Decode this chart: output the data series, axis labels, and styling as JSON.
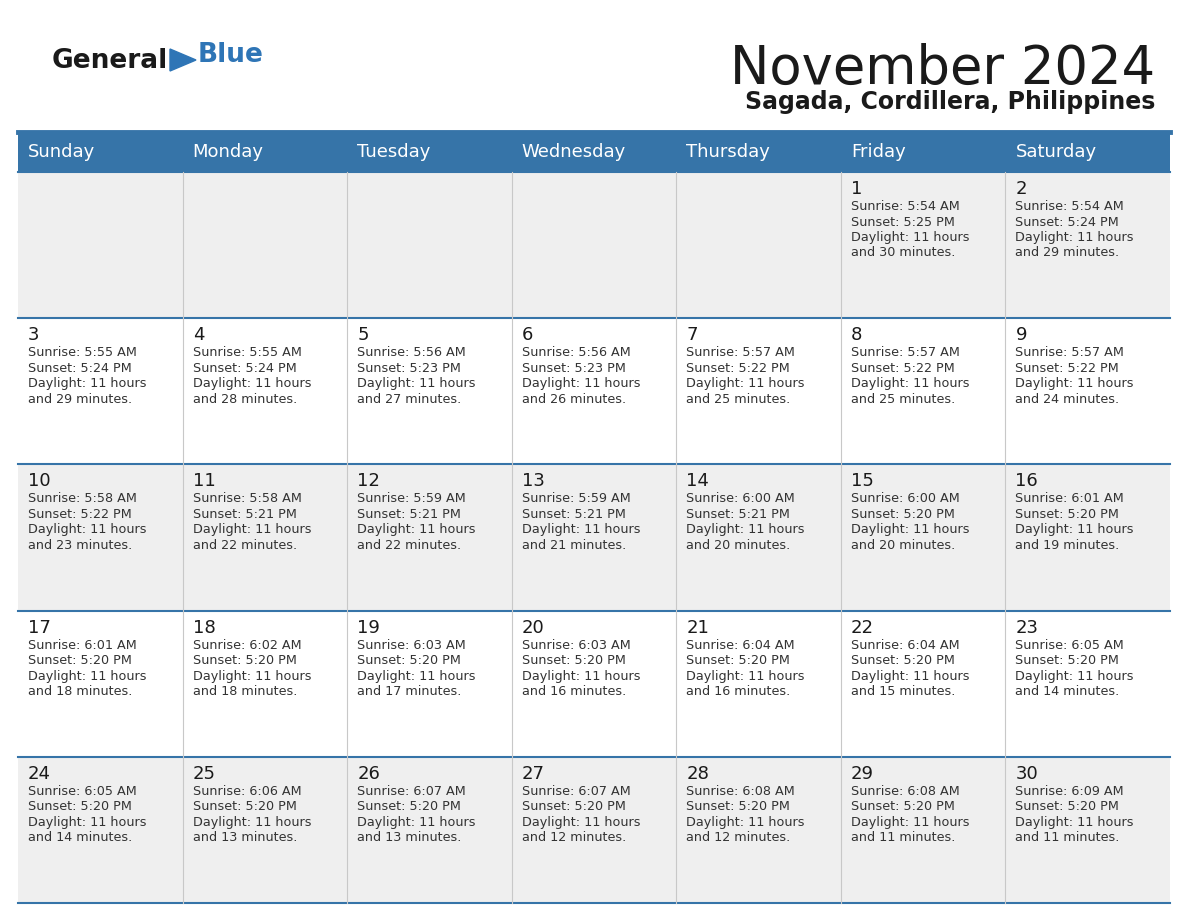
{
  "title": "November 2024",
  "subtitle": "Sagada, Cordillera, Philippines",
  "days_of_week": [
    "Sunday",
    "Monday",
    "Tuesday",
    "Wednesday",
    "Thursday",
    "Friday",
    "Saturday"
  ],
  "header_bg": "#3674A8",
  "header_text": "#FFFFFF",
  "cell_bg_odd": "#EFEFEF",
  "cell_bg_even": "#FFFFFF",
  "cell_text": "#333333",
  "line_color": "#3674A8",
  "logo_blue": "#2E75B6",
  "calendar_data": [
    [
      null,
      null,
      null,
      null,
      null,
      {
        "day": 1,
        "sunrise": "5:54 AM",
        "sunset": "5:25 PM",
        "daylight": "11 hours",
        "daylight2": "and 30 minutes."
      },
      {
        "day": 2,
        "sunrise": "5:54 AM",
        "sunset": "5:24 PM",
        "daylight": "11 hours",
        "daylight2": "and 29 minutes."
      }
    ],
    [
      {
        "day": 3,
        "sunrise": "5:55 AM",
        "sunset": "5:24 PM",
        "daylight": "11 hours",
        "daylight2": "and 29 minutes."
      },
      {
        "day": 4,
        "sunrise": "5:55 AM",
        "sunset": "5:24 PM",
        "daylight": "11 hours",
        "daylight2": "and 28 minutes."
      },
      {
        "day": 5,
        "sunrise": "5:56 AM",
        "sunset": "5:23 PM",
        "daylight": "11 hours",
        "daylight2": "and 27 minutes."
      },
      {
        "day": 6,
        "sunrise": "5:56 AM",
        "sunset": "5:23 PM",
        "daylight": "11 hours",
        "daylight2": "and 26 minutes."
      },
      {
        "day": 7,
        "sunrise": "5:57 AM",
        "sunset": "5:22 PM",
        "daylight": "11 hours",
        "daylight2": "and 25 minutes."
      },
      {
        "day": 8,
        "sunrise": "5:57 AM",
        "sunset": "5:22 PM",
        "daylight": "11 hours",
        "daylight2": "and 25 minutes."
      },
      {
        "day": 9,
        "sunrise": "5:57 AM",
        "sunset": "5:22 PM",
        "daylight": "11 hours",
        "daylight2": "and 24 minutes."
      }
    ],
    [
      {
        "day": 10,
        "sunrise": "5:58 AM",
        "sunset": "5:22 PM",
        "daylight": "11 hours",
        "daylight2": "and 23 minutes."
      },
      {
        "day": 11,
        "sunrise": "5:58 AM",
        "sunset": "5:21 PM",
        "daylight": "11 hours",
        "daylight2": "and 22 minutes."
      },
      {
        "day": 12,
        "sunrise": "5:59 AM",
        "sunset": "5:21 PM",
        "daylight": "11 hours",
        "daylight2": "and 22 minutes."
      },
      {
        "day": 13,
        "sunrise": "5:59 AM",
        "sunset": "5:21 PM",
        "daylight": "11 hours",
        "daylight2": "and 21 minutes."
      },
      {
        "day": 14,
        "sunrise": "6:00 AM",
        "sunset": "5:21 PM",
        "daylight": "11 hours",
        "daylight2": "and 20 minutes."
      },
      {
        "day": 15,
        "sunrise": "6:00 AM",
        "sunset": "5:20 PM",
        "daylight": "11 hours",
        "daylight2": "and 20 minutes."
      },
      {
        "day": 16,
        "sunrise": "6:01 AM",
        "sunset": "5:20 PM",
        "daylight": "11 hours",
        "daylight2": "and 19 minutes."
      }
    ],
    [
      {
        "day": 17,
        "sunrise": "6:01 AM",
        "sunset": "5:20 PM",
        "daylight": "11 hours",
        "daylight2": "and 18 minutes."
      },
      {
        "day": 18,
        "sunrise": "6:02 AM",
        "sunset": "5:20 PM",
        "daylight": "11 hours",
        "daylight2": "and 18 minutes."
      },
      {
        "day": 19,
        "sunrise": "6:03 AM",
        "sunset": "5:20 PM",
        "daylight": "11 hours",
        "daylight2": "and 17 minutes."
      },
      {
        "day": 20,
        "sunrise": "6:03 AM",
        "sunset": "5:20 PM",
        "daylight": "11 hours",
        "daylight2": "and 16 minutes."
      },
      {
        "day": 21,
        "sunrise": "6:04 AM",
        "sunset": "5:20 PM",
        "daylight": "11 hours",
        "daylight2": "and 16 minutes."
      },
      {
        "day": 22,
        "sunrise": "6:04 AM",
        "sunset": "5:20 PM",
        "daylight": "11 hours",
        "daylight2": "and 15 minutes."
      },
      {
        "day": 23,
        "sunrise": "6:05 AM",
        "sunset": "5:20 PM",
        "daylight": "11 hours",
        "daylight2": "and 14 minutes."
      }
    ],
    [
      {
        "day": 24,
        "sunrise": "6:05 AM",
        "sunset": "5:20 PM",
        "daylight": "11 hours",
        "daylight2": "and 14 minutes."
      },
      {
        "day": 25,
        "sunrise": "6:06 AM",
        "sunset": "5:20 PM",
        "daylight": "11 hours",
        "daylight2": "and 13 minutes."
      },
      {
        "day": 26,
        "sunrise": "6:07 AM",
        "sunset": "5:20 PM",
        "daylight": "11 hours",
        "daylight2": "and 13 minutes."
      },
      {
        "day": 27,
        "sunrise": "6:07 AM",
        "sunset": "5:20 PM",
        "daylight": "11 hours",
        "daylight2": "and 12 minutes."
      },
      {
        "day": 28,
        "sunrise": "6:08 AM",
        "sunset": "5:20 PM",
        "daylight": "11 hours",
        "daylight2": "and 12 minutes."
      },
      {
        "day": 29,
        "sunrise": "6:08 AM",
        "sunset": "5:20 PM",
        "daylight": "11 hours",
        "daylight2": "and 11 minutes."
      },
      {
        "day": 30,
        "sunrise": "6:09 AM",
        "sunset": "5:20 PM",
        "daylight": "11 hours",
        "daylight2": "and 11 minutes."
      }
    ]
  ]
}
